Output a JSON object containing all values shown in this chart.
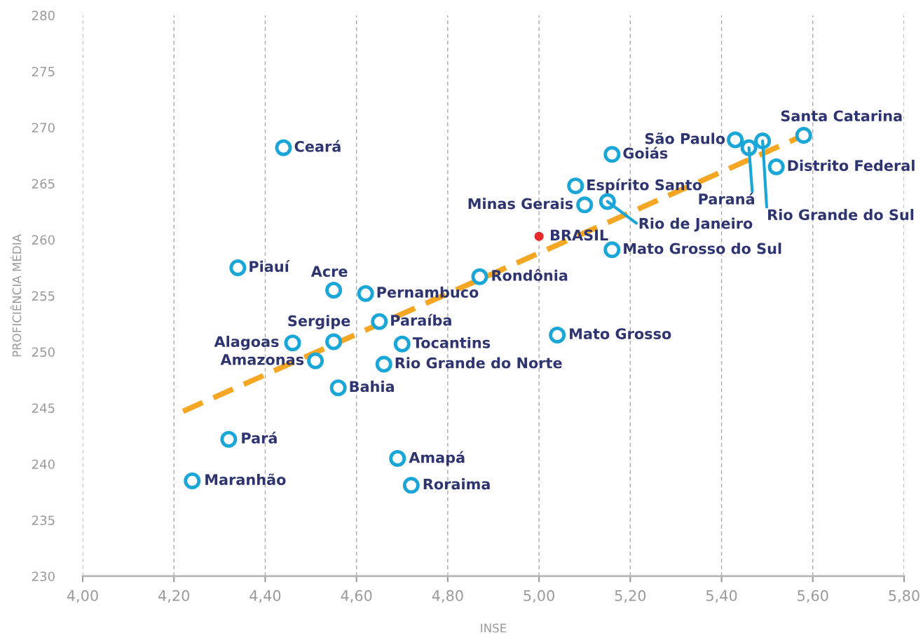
{
  "chart_data": {
    "type": "scatter",
    "xlabel": "INSE",
    "ylabel": "PROFICIÊNCIA MÉDIA",
    "xlim": [
      4.0,
      5.8
    ],
    "ylim": [
      230,
      280
    ],
    "xticks": [
      {
        "value": 4.0,
        "label": "4,00"
      },
      {
        "value": 4.2,
        "label": "4,20"
      },
      {
        "value": 4.4,
        "label": "4,40"
      },
      {
        "value": 4.6,
        "label": "4,60"
      },
      {
        "value": 4.8,
        "label": "4,80"
      },
      {
        "value": 5.0,
        "label": "5,00"
      },
      {
        "value": 5.2,
        "label": "5,20"
      },
      {
        "value": 5.4,
        "label": "5,40"
      },
      {
        "value": 5.6,
        "label": "5,60"
      },
      {
        "value": 5.8,
        "label": "5,80"
      }
    ],
    "yticks": [
      230,
      235,
      240,
      245,
      250,
      255,
      260,
      265,
      270,
      275,
      280
    ],
    "grid": "x",
    "marker": "circle",
    "series": [
      {
        "type": "line",
        "color": "#f5a623",
        "line_style": "dashed",
        "marker": "none",
        "x": [
          4.22,
          5.58
        ],
        "values": [
          244.7,
          269.3
        ]
      },
      {
        "color": "#1aa7d8",
        "x": [
          4.44,
          4.34,
          4.55,
          4.62,
          4.55,
          4.46,
          4.51,
          4.56,
          4.65,
          4.7,
          4.66,
          4.32,
          4.24,
          4.69,
          4.72,
          4.87,
          5.04,
          5.16,
          5.1,
          5.08,
          5.15,
          5.16,
          5.43,
          5.46,
          5.49,
          5.52,
          5.58
        ],
        "values": [
          268.2,
          257.5,
          255.5,
          255.2,
          250.9,
          250.8,
          249.2,
          246.8,
          252.7,
          250.7,
          248.9,
          242.2,
          238.5,
          240.5,
          238.1,
          256.7,
          251.5,
          259.1,
          263.1,
          264.8,
          263.4,
          267.6,
          268.9,
          268.2,
          268.8,
          266.5,
          269.3
        ]
      },
      {
        "color": "#e8282b",
        "x": [
          5.0
        ],
        "values": [
          260.3
        ]
      }
    ],
    "annotations": [
      {
        "text": "Ceará",
        "x": 4.44,
        "y": 268.2
      },
      {
        "text": "Piauí",
        "x": 4.34,
        "y": 257.5
      },
      {
        "text": "Acre",
        "x": 4.55,
        "y": 255.5
      },
      {
        "text": "Pernambuco",
        "x": 4.62,
        "y": 255.2
      },
      {
        "text": "Sergipe",
        "x": 4.55,
        "y": 250.9
      },
      {
        "text": "Alagoas",
        "x": 4.46,
        "y": 250.8
      },
      {
        "text": "Amazonas",
        "x": 4.51,
        "y": 249.2
      },
      {
        "text": "Bahia",
        "x": 4.56,
        "y": 246.8
      },
      {
        "text": "Paraíba",
        "x": 4.65,
        "y": 252.7
      },
      {
        "text": "Tocantins",
        "x": 4.7,
        "y": 250.7
      },
      {
        "text": "Rio Grande do Norte",
        "x": 4.66,
        "y": 248.9
      },
      {
        "text": "Pará",
        "x": 4.32,
        "y": 242.2
      },
      {
        "text": "Maranhão",
        "x": 4.24,
        "y": 238.5
      },
      {
        "text": "Amapá",
        "x": 4.69,
        "y": 240.5
      },
      {
        "text": "Roraima",
        "x": 4.72,
        "y": 238.1
      },
      {
        "text": "Rondônia",
        "x": 4.87,
        "y": 256.7
      },
      {
        "text": "Mato Grosso",
        "x": 5.04,
        "y": 251.5
      },
      {
        "text": "Mato Grosso do Sul",
        "x": 5.16,
        "y": 259.1
      },
      {
        "text": "Minas Gerais",
        "x": 5.1,
        "y": 263.1
      },
      {
        "text": "Espírito Santo",
        "x": 5.08,
        "y": 264.8
      },
      {
        "text": "Rio de Janeiro",
        "x": 5.15,
        "y": 263.4
      },
      {
        "text": "Goiás",
        "x": 5.16,
        "y": 267.6
      },
      {
        "text": "São Paulo",
        "x": 5.43,
        "y": 268.9
      },
      {
        "text": "Paraná",
        "x": 5.46,
        "y": 268.2
      },
      {
        "text": "Rio Grande do Sul",
        "x": 5.49,
        "y": 268.8
      },
      {
        "text": "Distrito Federal",
        "x": 5.52,
        "y": 266.5
      },
      {
        "text": "Santa Catarina",
        "x": 5.58,
        "y": 269.3
      },
      {
        "text": "BRASIL",
        "x": 5.0,
        "y": 260.3
      }
    ]
  }
}
